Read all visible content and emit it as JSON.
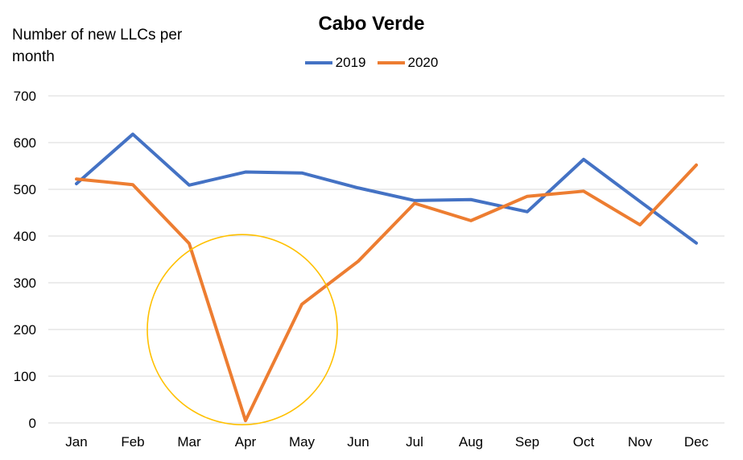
{
  "chart_data": {
    "type": "line",
    "title": "Cabo Verde",
    "ylabel": "Number of new LLCs per month",
    "xlabel": "",
    "categories": [
      "Jan",
      "Feb",
      "Mar",
      "Apr",
      "May",
      "Jun",
      "Jul",
      "Aug",
      "Sep",
      "Oct",
      "Nov",
      "Dec"
    ],
    "series": [
      {
        "name": "2019",
        "color": "#4472c4",
        "values": [
          512,
          618,
          509,
          537,
          535,
          503,
          476,
          478,
          452,
          564,
          474,
          385
        ]
      },
      {
        "name": "2020",
        "color": "#ed7d31",
        "values": [
          522,
          510,
          384,
          5,
          254,
          346,
          470,
          433,
          485,
          496,
          424,
          552
        ]
      }
    ],
    "ylim": [
      0,
      700
    ],
    "yticks": [
      0,
      100,
      200,
      300,
      400,
      500,
      600,
      700
    ],
    "grid": true,
    "legend_position": "top",
    "annotation": {
      "shape": "circle",
      "color": "#ffc000",
      "center": {
        "x": "Apr",
        "y": 210
      }
    }
  }
}
